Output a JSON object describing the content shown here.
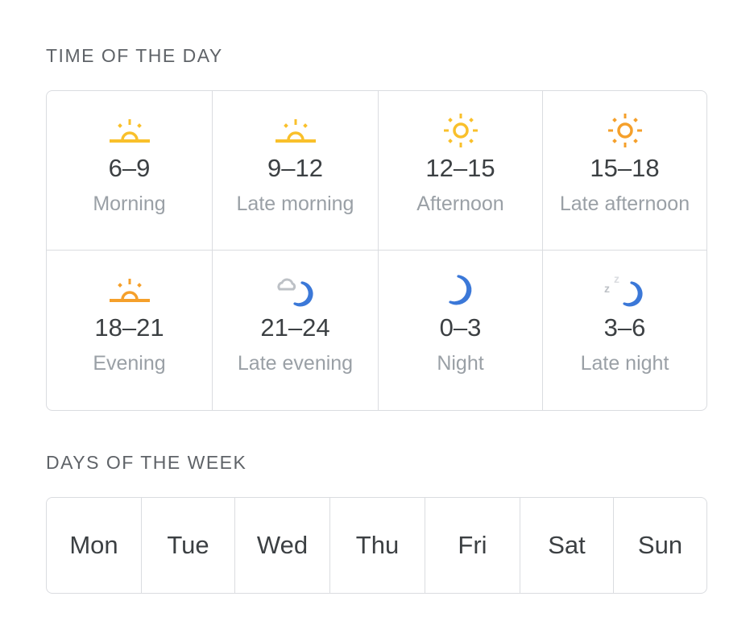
{
  "time_section": {
    "heading": "TIME OF THE DAY",
    "slots": [
      {
        "range": "6–9",
        "label": "Morning",
        "icon": "sunrise-icon",
        "color": "#F9C02B"
      },
      {
        "range": "9–12",
        "label": "Late morning",
        "icon": "sunrise-icon",
        "color": "#F9C02B"
      },
      {
        "range": "12–15",
        "label": "Afternoon",
        "icon": "sun-icon",
        "color": "#F9C02B"
      },
      {
        "range": "15–18",
        "label": "Late afternoon",
        "icon": "sun-icon",
        "color": "#F5A02B"
      },
      {
        "range": "18–21",
        "label": "Evening",
        "icon": "sunset-icon",
        "color": "#F5A02B"
      },
      {
        "range": "21–24",
        "label": "Late evening",
        "icon": "cloud-moon-icon",
        "color": "#3B78D8"
      },
      {
        "range": "0–3",
        "label": "Night",
        "icon": "moon-icon",
        "color": "#3B78D8"
      },
      {
        "range": "3–6",
        "label": "Late night",
        "icon": "sleep-moon-icon",
        "color": "#3B78D8"
      }
    ]
  },
  "days_section": {
    "heading": "DAYS OF THE WEEK",
    "days": [
      "Mon",
      "Tue",
      "Wed",
      "Thu",
      "Fri",
      "Sat",
      "Sun"
    ]
  },
  "colors": {
    "border": "#dadce0",
    "text": "#3c4043",
    "muted": "#9aa0a6",
    "cloud": "#BDC1C6"
  }
}
